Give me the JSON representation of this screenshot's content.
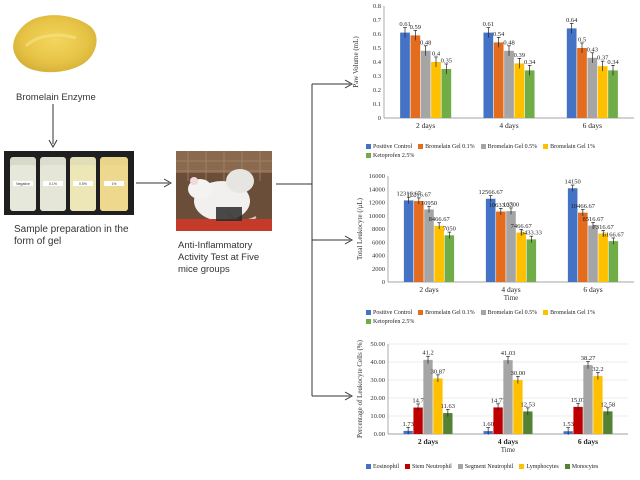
{
  "workflow": {
    "step1_label": "Bromelain Enzyme",
    "step2_label": "Sample preparation in the form of gel",
    "step3_label": "Anti-Inflammatory Activity Test at Five mice groups",
    "vial_labels": [
      "Negative",
      "0.1%",
      "0.5%",
      "1%"
    ]
  },
  "colors": {
    "positive_control": "#4472c4",
    "gel_01": "#e46c1f",
    "gel_05": "#a5a5a5",
    "gel_1": "#ffc000",
    "ketoprofen": "#70ad47",
    "eosinophil": "#4472c4",
    "stem_neutrophil": "#c00000",
    "segment_neutrophil": "#a5a5a5",
    "lymphocytes": "#ffc000",
    "monocytes": "#548235"
  },
  "chart_data": [
    {
      "type": "bar",
      "title": "",
      "xlabel": "",
      "ylabel": "Paw Volume (mL)",
      "ylim": [
        0,
        0.8
      ],
      "yticks": [
        "0",
        "0.1",
        "0.2",
        "0.3",
        "0.4",
        "0.5",
        "0.6",
        "0.7",
        "0.8"
      ],
      "categories": [
        "2 days",
        "4 days",
        "6 days"
      ],
      "series": [
        {
          "name": "Positive Control",
          "values": [
            0.61,
            0.61,
            0.64
          ],
          "labels": [
            "0.61",
            "0.61",
            "0.64"
          ]
        },
        {
          "name": "Bromelain Gel 0.1%",
          "values": [
            0.59,
            0.54,
            0.5
          ],
          "labels": [
            "0.59",
            "0.54",
            "0.5"
          ]
        },
        {
          "name": "Bromelain Gel 0.5%",
          "values": [
            0.48,
            0.48,
            0.43
          ],
          "labels": [
            "0.48",
            "0.48",
            "0.43"
          ]
        },
        {
          "name": "Bromelain Gel 1%",
          "values": [
            0.4,
            0.39,
            0.37
          ],
          "labels": [
            "0.4",
            "0.39",
            "0.37"
          ]
        },
        {
          "name": "Ketoprofen 2.5%",
          "values": [
            0.35,
            0.34,
            0.34
          ],
          "labels": [
            "0.35",
            "0.34",
            "0.34"
          ]
        }
      ],
      "legend_position": "bottom"
    },
    {
      "type": "bar",
      "title": "",
      "xlabel": "Time",
      "ylabel": "Total Leukocyte (/μL)",
      "ylim": [
        0,
        16000
      ],
      "yticks": [
        "0",
        "2000",
        "4000",
        "6000",
        "8000",
        "10000",
        "12000",
        "14000",
        "16000"
      ],
      "categories": [
        "2 days",
        "4 days",
        "6 days"
      ],
      "series": [
        {
          "name": "Positive Control",
          "values": [
            12316.67,
            12566.67,
            14150
          ],
          "labels": [
            "12316.67",
            "12566.67",
            "14150"
          ]
        },
        {
          "name": "Bromelain Gel 0.1%",
          "values": [
            12216.67,
            10633.33,
            10466.67
          ],
          "labels": [
            "12216.67",
            "10633.33",
            "10466.67"
          ]
        },
        {
          "name": "Bromelain Gel 0.5%",
          "values": [
            10950,
            10700,
            8516.67
          ],
          "labels": [
            "10950",
            "10700",
            "8516.67"
          ]
        },
        {
          "name": "Bromelain Gel 1%",
          "values": [
            8466.67,
            7466.67,
            7316.67
          ],
          "labels": [
            "8466.67",
            "7466.67",
            "7316.67"
          ]
        },
        {
          "name": "Ketoprofen 2.5%",
          "values": [
            7050,
            6433.33,
            6166.67
          ],
          "labels": [
            "7050",
            "6433.33",
            "6166.67"
          ]
        }
      ],
      "legend_position": "bottom"
    },
    {
      "type": "bar",
      "title": "",
      "xlabel": "Time",
      "ylabel": "Percentage of Leukocyte Cells (%)",
      "ylim": [
        0,
        50
      ],
      "yticks": [
        "0.00",
        "10.00",
        "20.00",
        "30.00",
        "40.00",
        "50.00"
      ],
      "categories": [
        "2 days",
        "4 days",
        "6 days"
      ],
      "series": [
        {
          "name": "Eosinophil",
          "values": [
            1.73,
            1.6,
            1.53
          ],
          "labels": [
            "1.73",
            "1.60",
            "1.53"
          ]
        },
        {
          "name": "Stem Neutrophil",
          "values": [
            14.7,
            14.77,
            15.07
          ],
          "labels": [
            "14.7",
            "14.77",
            "15.07"
          ]
        },
        {
          "name": "Segment Neutrophil",
          "values": [
            41.2,
            41.03,
            38.27
          ],
          "labels": [
            "41.2",
            "41.03",
            "38.27"
          ]
        },
        {
          "name": "Lymphocytes",
          "values": [
            30.87,
            30,
            32.2
          ],
          "labels": [
            "30.87",
            "30.00",
            "32.2"
          ]
        },
        {
          "name": "Monocytes",
          "values": [
            11.63,
            12.53,
            12.58
          ],
          "labels": [
            "11.63",
            "12.53",
            "12.58"
          ]
        }
      ],
      "legend_position": "bottom"
    }
  ]
}
